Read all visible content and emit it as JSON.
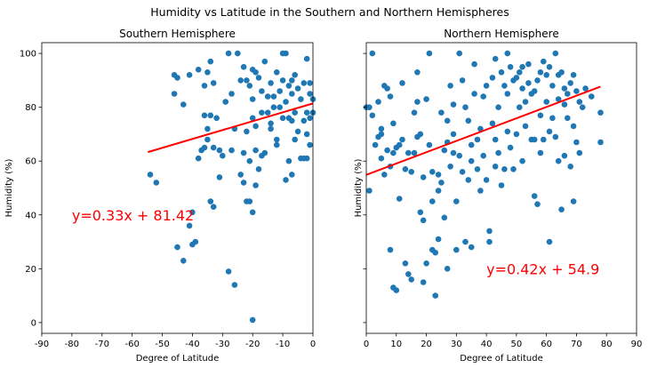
{
  "figure": {
    "title": "Humidity vs Latitude in the Southern and Northern Hemispheres"
  },
  "chart_data": [
    {
      "type": "scatter",
      "title": "Southern Hemisphere",
      "xlabel": "Degree of Latitude",
      "ylabel": "Humidity (%)",
      "xlim": [
        -90,
        0
      ],
      "ylim": [
        -4,
        104
      ],
      "xticks": [
        -90,
        -80,
        -70,
        -60,
        -50,
        -40,
        -30,
        -20,
        -10,
        0
      ],
      "yticks": [
        0,
        20,
        40,
        60,
        80,
        100
      ],
      "marker_color": "#1f77b4",
      "regression": {
        "slope": 0.33,
        "intercept": 81.42,
        "x_range": [
          -54.8,
          0
        ],
        "color": "#ff0000",
        "equation": "y=0.33x + 81.42",
        "equation_pos": [
          -80,
          40
        ]
      },
      "points": [
        [
          -54,
          55
        ],
        [
          -52,
          52
        ],
        [
          -46,
          92
        ],
        [
          -46,
          85
        ],
        [
          -45,
          91
        ],
        [
          -43,
          81
        ],
        [
          -45,
          28
        ],
        [
          -43,
          23
        ],
        [
          -41,
          36
        ],
        [
          -40,
          41
        ],
        [
          -40,
          29
        ],
        [
          -39,
          30
        ],
        [
          -41,
          92
        ],
        [
          -38,
          94
        ],
        [
          -36,
          88
        ],
        [
          -35,
          93
        ],
        [
          -34,
          97
        ],
        [
          -33,
          89
        ],
        [
          -36,
          77
        ],
        [
          -35,
          72
        ],
        [
          -34,
          77
        ],
        [
          -32,
          76
        ],
        [
          -33,
          65
        ],
        [
          -31,
          64
        ],
        [
          -30,
          62
        ],
        [
          -31,
          54
        ],
        [
          -34,
          45
        ],
        [
          -33,
          43
        ],
        [
          -38,
          61
        ],
        [
          -37,
          64
        ],
        [
          -35,
          68
        ],
        [
          -36,
          65
        ],
        [
          -29,
          82
        ],
        [
          -28,
          100
        ],
        [
          -27,
          85
        ],
        [
          -25,
          100
        ],
        [
          -24,
          90
        ],
        [
          -26,
          72
        ],
        [
          -27,
          64
        ],
        [
          -28,
          19
        ],
        [
          -26,
          14
        ],
        [
          -23,
          95
        ],
        [
          -22,
          90
        ],
        [
          -20,
          94
        ],
        [
          -19,
          93
        ],
        [
          -21,
          88
        ],
        [
          -20,
          83
        ],
        [
          -18,
          91
        ],
        [
          -17,
          86
        ],
        [
          -16,
          97
        ],
        [
          -22,
          71
        ],
        [
          -20,
          76
        ],
        [
          -19,
          73
        ],
        [
          -17,
          78
        ],
        [
          -23,
          63
        ],
        [
          -21,
          60
        ],
        [
          -19,
          64
        ],
        [
          -18,
          57
        ],
        [
          -22,
          45
        ],
        [
          -21,
          45
        ],
        [
          -20,
          41
        ],
        [
          -20,
          1
        ],
        [
          -24,
          55
        ],
        [
          -23,
          52
        ],
        [
          -19,
          51
        ],
        [
          -15,
          78
        ],
        [
          -14,
          74
        ],
        [
          -13,
          80
        ],
        [
          -12,
          68
        ],
        [
          -13,
          84
        ],
        [
          -12,
          93
        ],
        [
          -11,
          86
        ],
        [
          -10,
          90
        ],
        [
          -9,
          100
        ],
        [
          -10,
          100
        ],
        [
          -8,
          88
        ],
        [
          -7,
          90
        ],
        [
          -7,
          85
        ],
        [
          -6,
          92
        ],
        [
          -5,
          87
        ],
        [
          -9,
          82
        ],
        [
          -8,
          76
        ],
        [
          -7,
          75
        ],
        [
          -6,
          78
        ],
        [
          -4,
          83
        ],
        [
          -5,
          71
        ],
        [
          -6,
          68
        ],
        [
          -4,
          61
        ],
        [
          -8,
          60
        ],
        [
          -9,
          53
        ],
        [
          -7,
          55
        ],
        [
          -3,
          89
        ],
        [
          -2,
          98
        ],
        [
          -1,
          89
        ],
        [
          -1,
          85
        ],
        [
          0,
          83
        ],
        [
          0,
          78
        ],
        [
          -1,
          76
        ],
        [
          -2,
          78
        ],
        [
          -3,
          75
        ],
        [
          -2,
          70
        ],
        [
          -1,
          66
        ],
        [
          -3,
          61
        ],
        [
          -2,
          61
        ],
        [
          -15,
          84
        ],
        [
          -14,
          89
        ],
        [
          -16,
          63
        ],
        [
          -12,
          66
        ],
        [
          -11,
          80
        ],
        [
          -10,
          76
        ],
        [
          -14,
          72
        ],
        [
          -17,
          62
        ]
      ]
    },
    {
      "type": "scatter",
      "title": "Northern Hemisphere",
      "xlabel": "Degree of Latitude",
      "ylabel": "Humidity (%)",
      "xlim": [
        0,
        90
      ],
      "ylim": [
        -4,
        104
      ],
      "xticks": [
        0,
        10,
        20,
        30,
        40,
        50,
        60,
        70,
        80,
        90
      ],
      "yticks": [
        0,
        20,
        40,
        60,
        80,
        100
      ],
      "marker_color": "#1f77b4",
      "regression": {
        "slope": 0.42,
        "intercept": 54.9,
        "x_range": [
          0,
          78
        ],
        "color": "#ff0000",
        "equation": "y=0.42x + 54.9",
        "equation_pos": [
          40,
          20
        ]
      },
      "points": [
        [
          0,
          80
        ],
        [
          1,
          80
        ],
        [
          2,
          100
        ],
        [
          1,
          49
        ],
        [
          2,
          77
        ],
        [
          4,
          82
        ],
        [
          4,
          69
        ],
        [
          5,
          72
        ],
        [
          6,
          88
        ],
        [
          7,
          87
        ],
        [
          8,
          84
        ],
        [
          5,
          61
        ],
        [
          6,
          55
        ],
        [
          7,
          64
        ],
        [
          8,
          58
        ],
        [
          9,
          63
        ],
        [
          10,
          65
        ],
        [
          8,
          27
        ],
        [
          9,
          13
        ],
        [
          10,
          12
        ],
        [
          11,
          46
        ],
        [
          12,
          89
        ],
        [
          11,
          66
        ],
        [
          12,
          68
        ],
        [
          13,
          57
        ],
        [
          14,
          63
        ],
        [
          13,
          22
        ],
        [
          14,
          18
        ],
        [
          15,
          16
        ],
        [
          16,
          63
        ],
        [
          16,
          78
        ],
        [
          17,
          82
        ],
        [
          17,
          93
        ],
        [
          18,
          70
        ],
        [
          19,
          54
        ],
        [
          18,
          41
        ],
        [
          19,
          38
        ],
        [
          19,
          15
        ],
        [
          20,
          22
        ],
        [
          20,
          83
        ],
        [
          21,
          100
        ],
        [
          21,
          66
        ],
        [
          22,
          56
        ],
        [
          22,
          45
        ],
        [
          22,
          27
        ],
        [
          23,
          26
        ],
        [
          23,
          10
        ],
        [
          24,
          31
        ],
        [
          24,
          55
        ],
        [
          25,
          78
        ],
        [
          25,
          52
        ],
        [
          26,
          64
        ],
        [
          26,
          39
        ],
        [
          27,
          75
        ],
        [
          27,
          20
        ],
        [
          28,
          88
        ],
        [
          28,
          58
        ],
        [
          29,
          81
        ],
        [
          29,
          70
        ],
        [
          29,
          63
        ],
        [
          30,
          27
        ],
        [
          31,
          100
        ],
        [
          30,
          45
        ],
        [
          32,
          90
        ],
        [
          32,
          56
        ],
        [
          33,
          80
        ],
        [
          33,
          30
        ],
        [
          34,
          75
        ],
        [
          34,
          53
        ],
        [
          35,
          28
        ],
        [
          35,
          60
        ],
        [
          36,
          96
        ],
        [
          36,
          85
        ],
        [
          37,
          68
        ],
        [
          37,
          57
        ],
        [
          38,
          49
        ],
        [
          38,
          72
        ],
        [
          39,
          84
        ],
        [
          39,
          62
        ],
        [
          40,
          88
        ],
        [
          40,
          53
        ],
        [
          41,
          30
        ],
        [
          41,
          34
        ],
        [
          42,
          91
        ],
        [
          42,
          74
        ],
        [
          43,
          98
        ],
        [
          43,
          68
        ],
        [
          44,
          80
        ],
        [
          44,
          63
        ],
        [
          45,
          93
        ],
        [
          45,
          51
        ],
        [
          46,
          88
        ],
        [
          46,
          57
        ],
        [
          47,
          100
        ],
        [
          47,
          85
        ],
        [
          48,
          95
        ],
        [
          48,
          65
        ],
        [
          49,
          90
        ],
        [
          49,
          57
        ],
        [
          50,
          91
        ],
        [
          50,
          70
        ],
        [
          51,
          93
        ],
        [
          51,
          80
        ],
        [
          52,
          87
        ],
        [
          52,
          95
        ],
        [
          53,
          82
        ],
        [
          53,
          73
        ],
        [
          54,
          96
        ],
        [
          54,
          89
        ],
        [
          55,
          85
        ],
        [
          55,
          68
        ],
        [
          56,
          86
        ],
        [
          56,
          47
        ],
        [
          57,
          90
        ],
        [
          57,
          44
        ],
        [
          58,
          93
        ],
        [
          58,
          77
        ],
        [
          59,
          97
        ],
        [
          59,
          68
        ],
        [
          60,
          92
        ],
        [
          60,
          82
        ],
        [
          61,
          95
        ],
        [
          61,
          30
        ],
        [
          62,
          88
        ],
        [
          62,
          76
        ],
        [
          63,
          100
        ],
        [
          63,
          69
        ],
        [
          64,
          92
        ],
        [
          64,
          83
        ],
        [
          65,
          93
        ],
        [
          65,
          42
        ],
        [
          66,
          87
        ],
        [
          66,
          62
        ],
        [
          67,
          85
        ],
        [
          67,
          76
        ],
        [
          68,
          89
        ],
        [
          68,
          58
        ],
        [
          69,
          92
        ],
        [
          69,
          45
        ],
        [
          70,
          86
        ],
        [
          70,
          67
        ],
        [
          71,
          82
        ],
        [
          71,
          63
        ],
        [
          72,
          80
        ],
        [
          73,
          87
        ],
        [
          75,
          84
        ],
        [
          78,
          78
        ],
        [
          78,
          67
        ],
        [
          3,
          66
        ],
        [
          5,
          70
        ],
        [
          9,
          74
        ],
        [
          15,
          56
        ],
        [
          17,
          69
        ],
        [
          24,
          49
        ],
        [
          27,
          67
        ],
        [
          31,
          62
        ],
        [
          35,
          66
        ],
        [
          43,
          58
        ],
        [
          47,
          71
        ],
        [
          52,
          60
        ],
        [
          56,
          68
        ],
        [
          58,
          63
        ],
        [
          61,
          71
        ],
        [
          64,
          60
        ],
        [
          66,
          81
        ],
        [
          69,
          73
        ]
      ]
    }
  ]
}
